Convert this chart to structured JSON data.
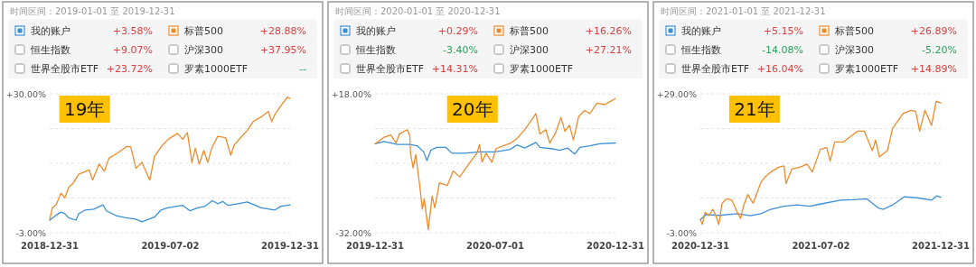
{
  "chart_data": [
    {
      "type": "line",
      "legend": "top",
      "grid": "y",
      "xlim": [
        "2018-12-31",
        "2019-12-31"
      ],
      "xticks": [
        "2018-12-31",
        "2019-07-02",
        "2019-12-31"
      ],
      "ylim": [
        -3,
        30
      ],
      "yticks": [
        {
          "value": -3,
          "label": "-3.00%"
        },
        {
          "value": 5.25,
          "label": null
        },
        {
          "value": 13.5,
          "label": null
        },
        {
          "value": 21.75,
          "label": null
        },
        {
          "value": 30,
          "label": "+30.00%"
        }
      ],
      "annotations": [
        "时间区间：2019-01-01 至 2019-12-31",
        "+3.58%",
        "+28.88%",
        "恒生指数",
        "+9.07%",
        "沪深300",
        "+37.95%",
        "世界全股市ETF",
        "+23.72%",
        "罗素1000ETF",
        "--",
        "19年"
      ],
      "series": [
        {
          "name": "我的账户",
          "color": "#3b8fd9",
          "x": [
            "2018-12-31",
            "2019-01-10",
            "2019-01-17",
            "2019-01-23",
            "2019-01-29",
            "2019-02-09",
            "2019-02-13",
            "2019-02-23",
            "2019-03-08",
            "2019-03-22",
            "2019-03-27",
            "2019-04-12",
            "2019-04-27",
            "2019-05-09",
            "2019-05-20",
            "2019-06-08",
            "2019-06-18",
            "2019-06-28",
            "2019-07-21",
            "2019-08-01",
            "2019-08-13",
            "2019-08-24",
            "2019-09-04",
            "2019-09-12",
            "2019-09-20",
            "2019-09-28",
            "2019-10-13",
            "2019-10-27",
            "2019-11-17",
            "2019-12-08",
            "2019-12-17",
            "2019-12-31"
          ],
          "values": [
            0,
            1.2,
            1.9,
            1.5,
            0.5,
            0,
            1.5,
            2.4,
            2.6,
            3.6,
            2.2,
            1.0,
            0.5,
            0.3,
            -0.4,
            0.7,
            2.4,
            2.9,
            3.5,
            2.2,
            2.9,
            3.3,
            4.6,
            3.9,
            4.4,
            3.5,
            3.9,
            4.3,
            2.9,
            2.4,
            3.3,
            3.6
          ]
        },
        {
          "name": "标普500",
          "color": "#ee8b2b",
          "x": [
            "2018-12-31",
            "2019-01-04",
            "2019-01-10",
            "2019-01-17",
            "2019-01-23",
            "2019-01-29",
            "2019-02-05",
            "2019-02-13",
            "2019-03-01",
            "2019-03-06",
            "2019-03-16",
            "2019-03-24",
            "2019-03-31",
            "2019-04-12",
            "2019-04-27",
            "2019-05-03",
            "2019-05-11",
            "2019-05-20",
            "2019-06-01",
            "2019-06-08",
            "2019-06-20",
            "2019-06-29",
            "2019-07-13",
            "2019-07-21",
            "2019-07-28",
            "2019-08-04",
            "2019-08-09",
            "2019-08-15",
            "2019-08-22",
            "2019-08-28",
            "2019-09-03",
            "2019-09-12",
            "2019-09-24",
            "2019-10-02",
            "2019-10-07",
            "2019-10-17",
            "2019-10-27",
            "2019-11-05",
            "2019-11-17",
            "2019-11-28",
            "2019-12-03",
            "2019-12-08",
            "2019-12-17",
            "2019-12-27",
            "2019-12-31"
          ],
          "values": [
            0,
            2.9,
            3.7,
            6.4,
            5.3,
            7.8,
            8.8,
            10.9,
            11.9,
            9.5,
            13.3,
            11.6,
            14.7,
            15.8,
            17.5,
            17.4,
            12.3,
            13.7,
            9.5,
            15.1,
            17.8,
            19.2,
            20.6,
            19.2,
            20.8,
            13.7,
            17.1,
            13.3,
            16.5,
            13.7,
            17.1,
            19.9,
            19.6,
            15.4,
            17.8,
            19.6,
            21.3,
            23.4,
            24.5,
            25.8,
            23.4,
            25.1,
            27.2,
            29.2,
            28.9
          ]
        }
      ]
    },
    {
      "type": "line",
      "legend": "top",
      "grid": "y",
      "xlim": [
        "2019-12-31",
        "2020-12-31"
      ],
      "xticks": [
        "2019-12-31",
        "2020-07-01",
        "2020-12-31"
      ],
      "ylim": [
        -32,
        18
      ],
      "yticks": [
        {
          "value": -32,
          "label": "-32.00%"
        },
        {
          "value": -19.5,
          "label": null
        },
        {
          "value": -7,
          "label": null
        },
        {
          "value": 5.5,
          "label": null
        },
        {
          "value": 18,
          "label": "+18.00%"
        }
      ],
      "annotations": [
        "时间区间：2020-01-01 至 2020-12-31",
        "+0.29%",
        "+16.26%",
        "恒生指数",
        "-3.40%",
        "沪深300",
        "+27.21%",
        "世界全股市ETF",
        "+14.31%",
        "罗素1000ETF",
        null,
        "20年"
      ],
      "series": [
        {
          "name": "我的账户",
          "color": "#3b8fd9",
          "x": [
            "2019-12-31",
            "2020-01-14",
            "2020-02-03",
            "2020-02-22",
            "2020-03-04",
            "2020-03-14",
            "2020-03-19",
            "2020-03-25",
            "2020-04-03",
            "2020-04-17",
            "2020-04-26",
            "2020-05-15",
            "2020-06-07",
            "2020-06-30",
            "2020-07-23",
            "2020-08-03",
            "2020-08-15",
            "2020-09-01",
            "2020-09-07",
            "2020-09-26",
            "2020-10-07",
            "2020-10-19",
            "2020-10-30",
            "2020-11-07",
            "2020-11-22",
            "2020-12-07",
            "2020-12-31"
          ],
          "values": [
            0,
            0.8,
            -0.2,
            -0.2,
            -0.7,
            -2.9,
            -6.0,
            -2.3,
            -1.3,
            -1.3,
            -3.4,
            -3.4,
            -2.9,
            -2.9,
            -2.1,
            -0.4,
            -1.5,
            0.5,
            -1.3,
            -1.8,
            -2.3,
            -1.5,
            -3.7,
            -1.3,
            -0.7,
            0.0,
            0.3
          ]
        },
        {
          "name": "标普500",
          "color": "#ee8b2b",
          "x": [
            "2019-12-31",
            "2020-01-14",
            "2020-01-24",
            "2020-02-01",
            "2020-02-06",
            "2020-02-18",
            "2020-02-22",
            "2020-02-23",
            "2020-02-27",
            "2020-03-02",
            "2020-03-08",
            "2020-03-12",
            "2020-03-15",
            "2020-03-21",
            "2020-03-27",
            "2020-03-31",
            "2020-04-07",
            "2020-04-19",
            "2020-04-28",
            "2020-05-08",
            "2020-05-19",
            "2020-06-03",
            "2020-06-07",
            "2020-06-11",
            "2020-06-17",
            "2020-06-26",
            "2020-07-02",
            "2020-07-13",
            "2020-07-25",
            "2020-08-03",
            "2020-08-15",
            "2020-08-26",
            "2020-09-01",
            "2020-09-07",
            "2020-09-16",
            "2020-09-22",
            "2020-10-01",
            "2020-10-09",
            "2020-10-15",
            "2020-10-22",
            "2020-10-28",
            "2020-11-05",
            "2020-11-14",
            "2020-11-22",
            "2020-12-03",
            "2020-12-15",
            "2020-12-22",
            "2020-12-31"
          ],
          "values": [
            0,
            2.4,
            3.2,
            0.3,
            3.5,
            5.1,
            3.0,
            -3.4,
            -8.7,
            -3.9,
            -15.0,
            -23.5,
            -19.8,
            -30.9,
            -18.8,
            -23.0,
            -14.0,
            -15.0,
            -9.8,
            -11.9,
            -8.2,
            -3.4,
            -0.2,
            -6.6,
            -3.4,
            -6.6,
            -1.8,
            -0.7,
            0.3,
            1.9,
            5.1,
            8.8,
            10.9,
            3.5,
            5.1,
            0.3,
            4.0,
            9.5,
            4.5,
            6.7,
            1.4,
            9.8,
            12.0,
            10.9,
            14.6,
            14.1,
            15.1,
            16.3
          ]
        }
      ]
    },
    {
      "type": "line",
      "legend": "top",
      "grid": "y",
      "xlim": [
        "2020-12-31",
        "2021-12-31"
      ],
      "xticks": [
        "2020-12-31",
        "2021-07-02",
        "2021-12-31"
      ],
      "ylim": [
        -3,
        29
      ],
      "yticks": [
        {
          "value": -3,
          "label": "-3.00%"
        },
        {
          "value": 5,
          "label": null
        },
        {
          "value": 13,
          "label": null
        },
        {
          "value": 21,
          "label": null
        },
        {
          "value": 29,
          "label": "+29.00%"
        }
      ],
      "annotations": [
        "时间区间：2021-01-01 至 2021-12-31",
        "+5.15%",
        "+26.89%",
        "恒生指数",
        "-14.08%",
        "沪深300",
        "-5.20%",
        "世界全股市ETF",
        "+16.04%",
        "罗素1000ETF",
        "+14.89%",
        "21年"
      ],
      "series": [
        {
          "name": "我的账户",
          "color": "#3b8fd9",
          "x": [
            "2020-12-31",
            "2021-01-09",
            "2021-01-29",
            "2021-02-25",
            "2021-03-17",
            "2021-04-02",
            "2021-04-17",
            "2021-05-07",
            "2021-05-27",
            "2021-06-15",
            "2021-07-01",
            "2021-08-01",
            "2021-08-21",
            "2021-09-10",
            "2021-09-27",
            "2021-10-05",
            "2021-10-19",
            "2021-11-06",
            "2021-11-27",
            "2021-12-17",
            "2021-12-25",
            "2021-12-31"
          ],
          "values": [
            0,
            1.2,
            1.0,
            1.4,
            0.9,
            1.4,
            2.4,
            3.1,
            3.4,
            3.1,
            3.6,
            4.5,
            4.6,
            4.8,
            2.7,
            2.4,
            3.4,
            5.3,
            5.0,
            4.5,
            5.5,
            5.2
          ]
        },
        {
          "name": "标普500",
          "color": "#ee8b2b",
          "x": [
            "2020-12-31",
            "2021-01-03",
            "2021-01-07",
            "2021-01-13",
            "2021-01-19",
            "2021-01-25",
            "2021-01-28",
            "2021-02-02",
            "2021-02-09",
            "2021-02-17",
            "2021-02-25",
            "2021-03-02",
            "2021-03-07",
            "2021-03-13",
            "2021-03-21",
            "2021-04-02",
            "2021-04-09",
            "2021-04-17",
            "2021-04-29",
            "2021-05-07",
            "2021-05-10",
            "2021-05-19",
            "2021-05-31",
            "2021-06-11",
            "2021-06-19",
            "2021-07-01",
            "2021-07-11",
            "2021-07-16",
            "2021-07-23",
            "2021-08-05",
            "2021-08-17",
            "2021-08-27",
            "2021-09-06",
            "2021-09-18",
            "2021-09-23",
            "2021-09-29",
            "2021-10-11",
            "2021-10-19",
            "2021-11-04",
            "2021-11-16",
            "2021-11-23",
            "2021-11-29",
            "2021-12-07",
            "2021-12-17",
            "2021-12-24",
            "2021-12-31"
          ],
          "values": [
            0,
            -1.1,
            1.7,
            1.0,
            2.4,
            0.3,
            -1.1,
            3.8,
            4.8,
            4.5,
            1.7,
            0.3,
            3.4,
            5.8,
            3.8,
            8.6,
            10.0,
            11.0,
            12.1,
            12.4,
            8.3,
            11.7,
            12.1,
            12.8,
            11.0,
            16.2,
            16.6,
            13.5,
            17.9,
            17.9,
            19.3,
            20.4,
            20.4,
            15.9,
            18.3,
            14.5,
            15.9,
            21.1,
            24.5,
            25.2,
            24.9,
            20.4,
            25.2,
            21.7,
            27.3,
            26.9
          ]
        }
      ]
    }
  ]
}
